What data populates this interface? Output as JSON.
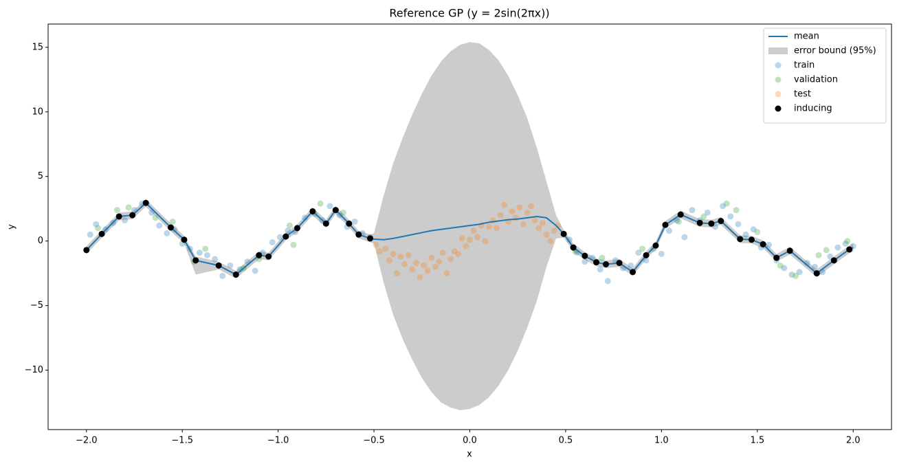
{
  "chart_data": {
    "type": "gp",
    "title": "Reference GP (y = 2sin(2πx))",
    "xlabel": "x",
    "ylabel": "y",
    "xlim": [
      -2.2,
      2.2
    ],
    "ylim": [
      -14.6,
      16.8
    ],
    "xticks": [
      {
        "value": -2,
        "label": "−2.0"
      },
      {
        "value": -1.5,
        "label": "−1.5"
      },
      {
        "value": -1,
        "label": "−1.0"
      },
      {
        "value": -0.5,
        "label": "−0.5"
      },
      {
        "value": 0,
        "label": "0.0"
      },
      {
        "value": 0.5,
        "label": "0.5"
      },
      {
        "value": 1,
        "label": "1.0"
      },
      {
        "value": 1.5,
        "label": "1.5"
      },
      {
        "value": 2,
        "label": "2.0"
      }
    ],
    "yticks": [
      {
        "value": -10,
        "label": "−10"
      },
      {
        "value": -5,
        "label": "−5"
      },
      0,
      5,
      10,
      15
    ],
    "legend": "upper right",
    "x": [
      -2,
      -1.92,
      -1.83,
      -1.76,
      -1.69,
      -1.56,
      -1.49,
      -1.43,
      -1.31,
      -1.22,
      -1.1,
      -1.05,
      -0.96,
      -0.9,
      -0.82,
      -0.75,
      -0.7,
      -0.63,
      -0.58,
      -0.52,
      -0.5,
      -0.45,
      -0.4,
      -0.35,
      -0.3,
      -0.25,
      -0.2,
      -0.15,
      -0.1,
      -0.05,
      0,
      0.05,
      0.1,
      0.15,
      0.2,
      0.25,
      0.3,
      0.35,
      0.4,
      0.45,
      0.49,
      0.54,
      0.6,
      0.66,
      0.71,
      0.78,
      0.85,
      0.92,
      0.97,
      1.02,
      1.1,
      1.2,
      1.26,
      1.31,
      1.41,
      1.47,
      1.53,
      1.6,
      1.67,
      1.81,
      1.9,
      1.98,
      2.0
    ],
    "series": [
      {
        "name": "mean",
        "type": "line",
        "color": "#1f77b4",
        "values": [
          -0.7,
          0.55,
          1.9,
          2.0,
          2.95,
          1.05,
          0.1,
          -1.5,
          -1.9,
          -2.6,
          -1.1,
          -1.2,
          0.35,
          1.0,
          2.3,
          1.35,
          2.4,
          1.35,
          0.5,
          0.2,
          0.15,
          0.1,
          0.2,
          0.35,
          0.5,
          0.65,
          0.8,
          0.9,
          1.0,
          1.1,
          1.2,
          1.3,
          1.45,
          1.55,
          1.65,
          1.7,
          1.8,
          1.9,
          1.8,
          1.2,
          0.55,
          -0.5,
          -1.15,
          -1.65,
          -1.8,
          -1.7,
          -2.4,
          -1.1,
          -0.35,
          1.25,
          2.05,
          1.4,
          1.35,
          1.55,
          0.15,
          0.1,
          -0.25,
          -1.3,
          -0.75,
          -2.5,
          -1.5,
          -0.65,
          -0.5
        ]
      },
      {
        "name": "error bound (95%)",
        "type": "band",
        "color": "#cccccc",
        "upper": [
          -0.4,
          0.85,
          2.2,
          2.3,
          3.25,
          1.35,
          0.4,
          -1.2,
          -1.6,
          -2.3,
          -0.8,
          -0.9,
          0.65,
          1.3,
          2.6,
          1.65,
          2.7,
          1.65,
          0.8,
          0.5,
          0.6,
          3.5,
          6.0,
          8.0,
          9.8,
          11.4,
          12.8,
          13.9,
          14.7,
          15.2,
          15.4,
          15.3,
          14.8,
          14.0,
          12.8,
          11.3,
          9.5,
          7.2,
          4.6,
          2.0,
          0.85,
          -0.2,
          -0.85,
          -1.35,
          -1.5,
          -1.4,
          -2.1,
          -0.8,
          -0.05,
          1.55,
          2.35,
          1.7,
          1.65,
          1.85,
          0.45,
          0.4,
          0.05,
          -1.0,
          -0.45,
          -2.2,
          -1.2,
          -0.35,
          -0.2
        ],
        "lower": [
          -1.0,
          0.25,
          1.6,
          1.7,
          2.65,
          0.75,
          -0.2,
          -2.6,
          -2.2,
          -2.9,
          -1.4,
          -1.5,
          0.05,
          0.7,
          2.0,
          1.05,
          2.1,
          1.05,
          0.2,
          -0.1,
          -0.2,
          -3.2,
          -5.7,
          -7.6,
          -9.2,
          -10.6,
          -11.7,
          -12.5,
          -12.9,
          -13.1,
          -13.0,
          -12.7,
          -12.1,
          -11.2,
          -10.0,
          -8.5,
          -6.7,
          -4.6,
          -2.0,
          0.2,
          0.25,
          -0.8,
          -1.45,
          -1.95,
          -2.1,
          -2.0,
          -2.7,
          -1.4,
          -0.65,
          0.95,
          1.75,
          1.1,
          1.05,
          1.25,
          -0.15,
          -0.2,
          -0.55,
          -1.6,
          -1.05,
          -2.8,
          -1.8,
          -0.95,
          -0.8
        ]
      },
      {
        "name": "train",
        "type": "scatter",
        "color": "#1f77b4",
        "alpha": 0.3,
        "x": [
          -1.98,
          -1.95,
          -1.9,
          -1.86,
          -1.8,
          -1.75,
          -1.71,
          -1.66,
          -1.62,
          -1.58,
          -1.54,
          -1.5,
          -1.46,
          -1.41,
          -1.37,
          -1.33,
          -1.29,
          -1.25,
          -1.2,
          -1.16,
          -1.12,
          -1.08,
          -1.03,
          -0.99,
          -0.95,
          -0.91,
          -0.86,
          -0.81,
          -0.77,
          -0.73,
          -0.68,
          -0.64,
          -0.6,
          -0.56,
          -0.52,
          0.52,
          0.56,
          0.6,
          0.64,
          0.68,
          0.72,
          0.76,
          0.8,
          0.84,
          0.88,
          0.92,
          0.96,
          1.0,
          1.04,
          1.08,
          1.12,
          1.16,
          1.2,
          1.24,
          1.28,
          1.32,
          1.36,
          1.4,
          1.44,
          1.48,
          1.52,
          1.56,
          1.6,
          1.64,
          1.68,
          1.72,
          1.76,
          1.8,
          1.84,
          1.88,
          1.92,
          1.96,
          2.0
        ],
        "values": [
          0.5,
          1.3,
          0.9,
          1.4,
          1.6,
          2.4,
          2.9,
          2.2,
          1.2,
          0.6,
          0.9,
          -0.2,
          -0.6,
          -0.9,
          -1.1,
          -1.4,
          -2.7,
          -1.9,
          -2.2,
          -1.6,
          -2.3,
          -0.9,
          -0.1,
          0.3,
          0.8,
          0.7,
          1.8,
          2.1,
          1.6,
          2.7,
          2.0,
          1.1,
          1.5,
          0.6,
          0.3,
          0.1,
          -0.9,
          -1.6,
          -1.3,
          -2.2,
          -3.1,
          -1.5,
          -2.1,
          -1.9,
          -0.9,
          -1.5,
          -0.6,
          -1.0,
          0.8,
          1.6,
          0.3,
          2.4,
          1.6,
          2.2,
          1.1,
          2.7,
          1.9,
          1.3,
          0.5,
          0.9,
          -0.5,
          -0.3,
          -1.5,
          -2.1,
          -2.6,
          -2.4,
          -1.7,
          -2.0,
          -2.4,
          -1.2,
          -0.5,
          -0.2,
          -0.4
        ]
      },
      {
        "name": "validation",
        "type": "scatter",
        "color": "#2ca02c",
        "alpha": 0.3,
        "x": [
          -1.94,
          -1.84,
          -1.78,
          -1.64,
          -1.55,
          -1.44,
          -1.38,
          -1.18,
          -1.1,
          -0.94,
          -0.92,
          -0.78,
          -0.66,
          0.55,
          0.69,
          0.9,
          1.09,
          1.22,
          1.34,
          1.39,
          1.5,
          1.62,
          1.7,
          1.82,
          1.86,
          1.97
        ],
        "values": [
          1.0,
          2.4,
          2.6,
          1.8,
          1.5,
          -1.6,
          -0.6,
          -2.1,
          -1.4,
          1.2,
          -0.3,
          2.9,
          2.2,
          -0.8,
          -1.3,
          -0.6,
          1.5,
          1.9,
          2.9,
          2.4,
          0.7,
          -1.9,
          -2.7,
          -1.1,
          -0.7,
          0.0
        ]
      },
      {
        "name": "test",
        "type": "scatter",
        "color": "#ff7f0e",
        "alpha": 0.3,
        "x": [
          -0.49,
          -0.47,
          -0.44,
          -0.42,
          -0.4,
          -0.38,
          -0.36,
          -0.34,
          -0.32,
          -0.3,
          -0.28,
          -0.26,
          -0.24,
          -0.22,
          -0.2,
          -0.18,
          -0.16,
          -0.14,
          -0.12,
          -0.1,
          -0.08,
          -0.06,
          -0.04,
          -0.02,
          0.0,
          0.02,
          0.04,
          0.06,
          0.08,
          0.1,
          0.12,
          0.14,
          0.16,
          0.18,
          0.2,
          0.22,
          0.24,
          0.26,
          0.28,
          0.3,
          0.32,
          0.34,
          0.36,
          0.38,
          0.4,
          0.42,
          0.44,
          0.46
        ],
        "values": [
          -0.3,
          -0.8,
          -0.6,
          -1.5,
          -1.0,
          -2.5,
          -1.2,
          -1.8,
          -1.1,
          -2.2,
          -1.7,
          -2.8,
          -1.9,
          -2.3,
          -1.3,
          -2.0,
          -1.6,
          -0.9,
          -2.5,
          -1.4,
          -0.8,
          -1.0,
          0.2,
          -0.4,
          0.1,
          0.8,
          0.3,
          1.2,
          0.0,
          1.1,
          1.6,
          1.0,
          2.0,
          2.8,
          1.5,
          2.3,
          1.8,
          2.6,
          1.3,
          2.2,
          2.7,
          1.6,
          1.0,
          1.4,
          0.5,
          0.0,
          0.8,
          1.2
        ]
      },
      {
        "name": "inducing",
        "type": "scatter",
        "color": "#000000",
        "alpha": 1,
        "x": [
          -2,
          -1.92,
          -1.83,
          -1.76,
          -1.69,
          -1.56,
          -1.49,
          -1.43,
          -1.31,
          -1.22,
          -1.1,
          -1.05,
          -0.96,
          -0.9,
          -0.82,
          -0.75,
          -0.7,
          -0.63,
          -0.58,
          -0.52,
          0.49,
          0.54,
          0.6,
          0.66,
          0.71,
          0.78,
          0.85,
          0.92,
          0.97,
          1.02,
          1.1,
          1.2,
          1.26,
          1.31,
          1.41,
          1.47,
          1.53,
          1.6,
          1.67,
          1.81,
          1.9,
          1.98
        ],
        "values": [
          -0.7,
          0.55,
          1.9,
          2.0,
          2.95,
          1.05,
          0.1,
          -1.5,
          -1.9,
          -2.6,
          -1.1,
          -1.2,
          0.35,
          1.0,
          2.3,
          1.35,
          2.4,
          1.35,
          0.5,
          0.2,
          0.55,
          -0.5,
          -1.15,
          -1.65,
          -1.8,
          -1.7,
          -2.4,
          -1.1,
          -0.35,
          1.25,
          2.05,
          1.4,
          1.35,
          1.55,
          0.15,
          0.1,
          -0.25,
          -1.3,
          -0.75,
          -2.5,
          -1.5,
          -0.65
        ]
      }
    ]
  }
}
